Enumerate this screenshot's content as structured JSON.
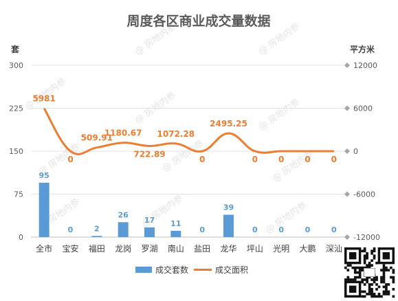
{
  "chart_data": {
    "type": "bar",
    "title": "周度各区商业成交量数据",
    "y_left_unit": "套",
    "y_right_unit": "平方米",
    "categories": [
      "全市",
      "宝安",
      "福田",
      "龙岗",
      "罗湖",
      "南山",
      "盐田",
      "龙华",
      "坪山",
      "光明",
      "大鹏",
      "深汕"
    ],
    "y_left_ticks": [
      0,
      75,
      150,
      225,
      300
    ],
    "y_right_ticks": [
      -12000,
      -6000,
      0,
      6000,
      12000
    ],
    "y_left_lim": [
      0,
      300
    ],
    "y_right_lim": [
      -12000,
      12000
    ],
    "series": [
      {
        "name": "成交套数",
        "type": "bar",
        "axis": "left",
        "color": "#5b9bd5",
        "values": [
          95,
          0,
          2,
          26,
          17,
          11,
          0,
          39,
          0,
          0,
          0,
          0
        ],
        "labels": [
          "95",
          "0",
          "2",
          "26",
          "17",
          "11",
          "0",
          "39",
          "0",
          "0",
          "0",
          "0"
        ]
      },
      {
        "name": "成交面积",
        "type": "line",
        "axis": "right",
        "color": "#ed7d31",
        "values": [
          5981,
          0,
          509.91,
          1180.67,
          722.89,
          1072.28,
          0,
          2495.25,
          0,
          0,
          0,
          0
        ],
        "labels": [
          "5981",
          "0",
          "509.91",
          "1180.67",
          "722.89",
          "1072.28",
          "0",
          "2495.25",
          "0",
          "0",
          "0",
          "0"
        ]
      }
    ],
    "legend_position": "bottom",
    "grid": true
  },
  "watermark": "房地内参"
}
